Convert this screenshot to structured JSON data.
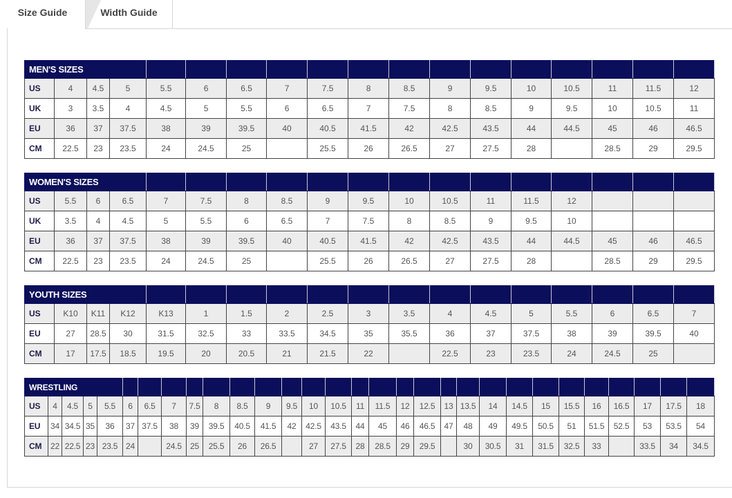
{
  "tabs": [
    {
      "label": "Size Guide",
      "active": true
    },
    {
      "label": "Width Guide",
      "active": false
    }
  ],
  "colors": {
    "header": "#0b0e5a",
    "alt_row": "#ececec"
  },
  "tables": [
    {
      "id": "mens",
      "title": "MEN'S SIZES",
      "rows": [
        {
          "label": "US",
          "values": [
            "4",
            "4.5",
            "5",
            "5.5",
            "6",
            "6.5",
            "7",
            "7.5",
            "8",
            "8.5",
            "9",
            "9.5",
            "10",
            "10.5",
            "11",
            "11.5",
            "12"
          ]
        },
        {
          "label": "UK",
          "values": [
            "3",
            "3.5",
            "4",
            "4.5",
            "5",
            "5.5",
            "6",
            "6.5",
            "7",
            "7.5",
            "8",
            "8.5",
            "9",
            "9.5",
            "10",
            "10.5",
            "11"
          ]
        },
        {
          "label": "EU",
          "values": [
            "36",
            "37",
            "37.5",
            "38",
            "39",
            "39.5",
            "40",
            "40.5",
            "41.5",
            "42",
            "42.5",
            "43.5",
            "44",
            "44.5",
            "45",
            "46",
            "46.5"
          ]
        },
        {
          "label": "CM",
          "values": [
            "22.5",
            "23",
            "23.5",
            "24",
            "24.5",
            "25",
            "",
            "25.5",
            "26",
            "26.5",
            "27",
            "27.5",
            "28",
            "",
            "28.5",
            "29",
            "29.5"
          ]
        }
      ]
    },
    {
      "id": "womens",
      "title": "WOMEN'S SIZES",
      "rows": [
        {
          "label": "US",
          "values": [
            "5.5",
            "6",
            "6.5",
            "7",
            "7.5",
            "8",
            "8.5",
            "9",
            "9.5",
            "10",
            "10.5",
            "11",
            "11.5",
            "12",
            "",
            "",
            ""
          ]
        },
        {
          "label": "UK",
          "values": [
            "3.5",
            "4",
            "4.5",
            "5",
            "5.5",
            "6",
            "6.5",
            "7",
            "7.5",
            "8",
            "8.5",
            "9",
            "9.5",
            "10",
            "",
            "",
            ""
          ]
        },
        {
          "label": "EU",
          "values": [
            "36",
            "37",
            "37.5",
            "38",
            "39",
            "39.5",
            "40",
            "40.5",
            "41.5",
            "42",
            "42.5",
            "43.5",
            "44",
            "44.5",
            "45",
            "46",
            "46.5"
          ]
        },
        {
          "label": "CM",
          "values": [
            "22.5",
            "23",
            "23.5",
            "24",
            "24.5",
            "25",
            "",
            "25.5",
            "26",
            "26.5",
            "27",
            "27.5",
            "28",
            "",
            "28.5",
            "29",
            "29.5"
          ]
        }
      ]
    },
    {
      "id": "youth",
      "title": "YOUTH SIZES",
      "rows": [
        {
          "label": "US",
          "values": [
            "K10",
            "K11",
            "K12",
            "K13",
            "1",
            "1.5",
            "2",
            "2.5",
            "3",
            "3.5",
            "4",
            "4.5",
            "5",
            "5.5",
            "6",
            "6.5",
            "7"
          ]
        },
        {
          "label": "EU",
          "values": [
            "27",
            "28.5",
            "30",
            "31.5",
            "32.5",
            "33",
            "33.5",
            "34.5",
            "35",
            "35.5",
            "36",
            "37",
            "37.5",
            "38",
            "39",
            "39.5",
            "40"
          ]
        },
        {
          "label": "CM",
          "values": [
            "17",
            "17.5",
            "18.5",
            "19.5",
            "20",
            "20.5",
            "21",
            "21.5",
            "22",
            "",
            "22.5",
            "23",
            "23.5",
            "24",
            "24.5",
            "25",
            ""
          ]
        }
      ]
    },
    {
      "id": "wrestling",
      "title": "WRESTLING",
      "rows": [
        {
          "label": "US",
          "values": [
            "4",
            "4.5",
            "5",
            "5.5",
            "6",
            "6.5",
            "7",
            "7.5",
            "8",
            "8.5",
            "9",
            "9.5",
            "10",
            "10.5",
            "11",
            "11.5",
            "12",
            "12.5",
            "13",
            "13.5",
            "14",
            "14.5",
            "15",
            "15.5",
            "16",
            "16.5",
            "17",
            "17.5",
            "18"
          ]
        },
        {
          "label": "EU",
          "values": [
            "34",
            "34.5",
            "35",
            "36",
            "37",
            "37.5",
            "38",
            "39",
            "39.5",
            "40.5",
            "41.5",
            "42",
            "42.5",
            "43.5",
            "44",
            "45",
            "46",
            "46.5",
            "47",
            "48",
            "49",
            "49.5",
            "50.5",
            "51",
            "51.5",
            "52.5",
            "53",
            "53.5",
            "54"
          ]
        },
        {
          "label": "CM",
          "values": [
            "22",
            "22.5",
            "23",
            "23.5",
            "24",
            "",
            "24.5",
            "25",
            "25.5",
            "26",
            "26.5",
            "",
            "27",
            "27.5",
            "28",
            "28.5",
            "29",
            "29.5",
            "",
            "30",
            "30.5",
            "31",
            "31.5",
            "32.5",
            "33",
            "",
            "33.5",
            "34",
            "34.5"
          ]
        }
      ]
    }
  ]
}
